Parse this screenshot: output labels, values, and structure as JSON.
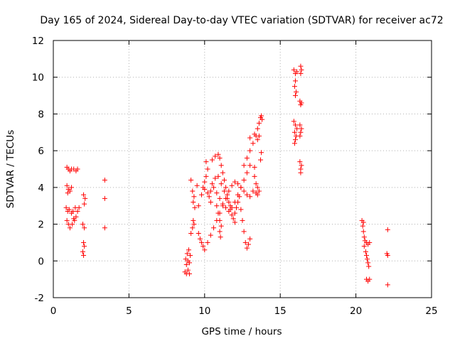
{
  "chart_data": {
    "type": "scatter",
    "title": "Day 165 of 2024, Sidereal Day-to-day VTEC variation (SDTVAR) for receiver ac72",
    "xlabel": "GPS time / hours",
    "ylabel": "SDTVAR / TECUs",
    "xlim": [
      0,
      25
    ],
    "ylim": [
      -2,
      12
    ],
    "xticks": [
      "0",
      "5",
      "10",
      "15",
      "20",
      "25"
    ],
    "yticks": [
      "-2",
      "0",
      "2",
      "4",
      "6",
      "8",
      "10",
      "12"
    ],
    "grid": true,
    "marker": "+",
    "color": "#ff0000",
    "series": [
      {
        "name": "SDTVAR",
        "points": [
          [
            0.9,
            5.1
          ],
          [
            1.0,
            5.0
          ],
          [
            1.1,
            4.9
          ],
          [
            1.2,
            5.0
          ],
          [
            1.35,
            5.0
          ],
          [
            1.5,
            4.9
          ],
          [
            1.6,
            5.0
          ],
          [
            0.9,
            4.1
          ],
          [
            1.0,
            3.9
          ],
          [
            1.1,
            3.8
          ],
          [
            1.2,
            4.0
          ],
          [
            0.95,
            3.7
          ],
          [
            0.85,
            2.9
          ],
          [
            0.95,
            2.7
          ],
          [
            1.05,
            2.8
          ],
          [
            1.2,
            2.6
          ],
          [
            1.3,
            2.7
          ],
          [
            1.45,
            2.9
          ],
          [
            1.6,
            2.7
          ],
          [
            1.7,
            2.9
          ],
          [
            0.9,
            2.2
          ],
          [
            1.0,
            2.0
          ],
          [
            1.1,
            1.8
          ],
          [
            1.25,
            2.0
          ],
          [
            1.4,
            2.2
          ],
          [
            1.5,
            2.4
          ],
          [
            1.35,
            2.3
          ],
          [
            2.0,
            3.6
          ],
          [
            2.1,
            3.4
          ],
          [
            2.05,
            3.1
          ],
          [
            1.95,
            2.0
          ],
          [
            2.05,
            1.8
          ],
          [
            2.0,
            1.0
          ],
          [
            2.05,
            0.8
          ],
          [
            1.95,
            0.5
          ],
          [
            2.0,
            0.3
          ],
          [
            3.4,
            4.4
          ],
          [
            3.4,
            3.4
          ],
          [
            3.4,
            1.8
          ],
          [
            8.7,
            -0.6
          ],
          [
            8.8,
            -0.7
          ],
          [
            8.9,
            -0.5
          ],
          [
            9.0,
            -0.7
          ],
          [
            8.75,
            0.1
          ],
          [
            8.85,
            0.4
          ],
          [
            8.95,
            0.6
          ],
          [
            9.05,
            0.3
          ],
          [
            8.8,
            -0.2
          ],
          [
            8.9,
            0.0
          ],
          [
            9.0,
            -0.1
          ],
          [
            9.1,
            1.5
          ],
          [
            9.2,
            1.8
          ],
          [
            9.3,
            2.0
          ],
          [
            9.25,
            2.2
          ],
          [
            9.2,
            3.8
          ],
          [
            9.3,
            3.5
          ],
          [
            9.25,
            3.2
          ],
          [
            9.35,
            2.9
          ],
          [
            9.1,
            4.4
          ],
          [
            9.5,
            4.1
          ],
          [
            9.6,
            3.0
          ],
          [
            9.8,
            3.6
          ],
          [
            9.9,
            4.0
          ],
          [
            10.0,
            4.3
          ],
          [
            10.1,
            4.6
          ],
          [
            10.2,
            5.0
          ],
          [
            10.1,
            5.4
          ],
          [
            10.3,
            3.5
          ],
          [
            10.4,
            3.2
          ],
          [
            10.5,
            5.5
          ],
          [
            10.7,
            5.7
          ],
          [
            10.9,
            5.8
          ],
          [
            11.0,
            5.6
          ],
          [
            11.1,
            5.2
          ],
          [
            11.2,
            4.8
          ],
          [
            11.3,
            4.4
          ],
          [
            11.4,
            4.0
          ],
          [
            11.5,
            3.6
          ],
          [
            11.6,
            3.2
          ],
          [
            11.7,
            2.8
          ],
          [
            11.8,
            2.5
          ],
          [
            11.9,
            2.3
          ],
          [
            12.0,
            2.1
          ],
          [
            9.6,
            1.5
          ],
          [
            9.7,
            1.2
          ],
          [
            9.8,
            1.0
          ],
          [
            9.9,
            0.8
          ],
          [
            10.0,
            0.6
          ],
          [
            10.2,
            1.0
          ],
          [
            10.4,
            1.4
          ],
          [
            10.6,
            1.8
          ],
          [
            10.8,
            2.2
          ],
          [
            11.0,
            2.6
          ],
          [
            11.2,
            3.0
          ],
          [
            11.4,
            3.4
          ],
          [
            11.6,
            3.8
          ],
          [
            11.8,
            4.1
          ],
          [
            12.0,
            4.3
          ],
          [
            12.2,
            4.2
          ],
          [
            12.4,
            4.0
          ],
          [
            12.6,
            3.8
          ],
          [
            12.8,
            3.6
          ],
          [
            13.0,
            3.5
          ],
          [
            13.2,
            3.8
          ],
          [
            13.4,
            3.7
          ],
          [
            13.5,
            3.6
          ],
          [
            10.0,
            3.9
          ],
          [
            10.2,
            3.7
          ],
          [
            10.4,
            3.8
          ],
          [
            10.6,
            4.0
          ],
          [
            10.8,
            3.7
          ],
          [
            11.0,
            3.4
          ],
          [
            11.2,
            3.1
          ],
          [
            11.4,
            2.9
          ],
          [
            11.6,
            2.7
          ],
          [
            11.8,
            2.9
          ],
          [
            12.0,
            3.2
          ],
          [
            12.2,
            3.6
          ],
          [
            12.4,
            4.0
          ],
          [
            12.6,
            4.4
          ],
          [
            12.8,
            4.8
          ],
          [
            13.0,
            5.2
          ],
          [
            10.5,
            4.2
          ],
          [
            10.7,
            4.5
          ],
          [
            10.9,
            4.6
          ],
          [
            11.1,
            4.2
          ],
          [
            11.3,
            3.8
          ],
          [
            11.5,
            3.4
          ],
          [
            11.7,
            3.0
          ],
          [
            10.8,
            3.0
          ],
          [
            10.9,
            2.6
          ],
          [
            11.0,
            2.2
          ],
          [
            11.1,
            1.9
          ],
          [
            11.0,
            1.6
          ],
          [
            11.05,
            1.3
          ],
          [
            12.0,
            2.6
          ],
          [
            12.1,
            2.9
          ],
          [
            12.2,
            3.2
          ],
          [
            12.3,
            3.5
          ],
          [
            12.4,
            2.8
          ],
          [
            12.5,
            2.2
          ],
          [
            12.6,
            1.6
          ],
          [
            12.7,
            1.0
          ],
          [
            12.8,
            0.7
          ],
          [
            12.9,
            0.9
          ],
          [
            13.0,
            1.2
          ],
          [
            12.6,
            5.2
          ],
          [
            12.8,
            5.6
          ],
          [
            13.0,
            6.0
          ],
          [
            13.2,
            6.4
          ],
          [
            13.4,
            6.8
          ],
          [
            13.5,
            7.2
          ],
          [
            13.6,
            7.5
          ],
          [
            13.7,
            7.8
          ],
          [
            13.75,
            7.9
          ],
          [
            13.8,
            7.7
          ],
          [
            13.0,
            6.7
          ],
          [
            13.3,
            6.9
          ],
          [
            13.5,
            6.6
          ],
          [
            13.6,
            6.8
          ],
          [
            13.3,
            4.6
          ],
          [
            13.4,
            4.2
          ],
          [
            13.5,
            4.0
          ],
          [
            13.6,
            3.8
          ],
          [
            13.7,
            5.5
          ],
          [
            13.75,
            5.9
          ],
          [
            13.3,
            5.1
          ],
          [
            15.9,
            10.4
          ],
          [
            16.0,
            10.2
          ],
          [
            16.1,
            10.3
          ],
          [
            16.0,
            9.8
          ],
          [
            15.95,
            9.5
          ],
          [
            16.05,
            9.2
          ],
          [
            16.0,
            9.0
          ],
          [
            16.35,
            10.6
          ],
          [
            16.4,
            10.4
          ],
          [
            16.35,
            10.2
          ],
          [
            16.3,
            8.7
          ],
          [
            16.4,
            8.6
          ],
          [
            16.35,
            8.5
          ],
          [
            15.9,
            7.6
          ],
          [
            16.0,
            7.4
          ],
          [
            16.1,
            7.2
          ],
          [
            15.95,
            7.0
          ],
          [
            16.05,
            6.8
          ],
          [
            16.0,
            6.6
          ],
          [
            15.95,
            6.4
          ],
          [
            16.3,
            7.4
          ],
          [
            16.4,
            7.2
          ],
          [
            16.35,
            7.0
          ],
          [
            16.3,
            6.8
          ],
          [
            16.3,
            5.4
          ],
          [
            16.4,
            5.2
          ],
          [
            16.35,
            5.0
          ],
          [
            16.35,
            4.8
          ],
          [
            20.4,
            2.2
          ],
          [
            20.5,
            2.1
          ],
          [
            20.45,
            1.9
          ],
          [
            20.5,
            1.6
          ],
          [
            20.55,
            1.3
          ],
          [
            20.6,
            1.1
          ],
          [
            20.7,
            1.0
          ],
          [
            20.8,
            0.9
          ],
          [
            20.9,
            1.0
          ],
          [
            20.55,
            0.8
          ],
          [
            20.65,
            0.5
          ],
          [
            20.7,
            0.3
          ],
          [
            20.75,
            0.1
          ],
          [
            20.8,
            -0.1
          ],
          [
            20.85,
            -0.3
          ],
          [
            20.7,
            -1.0
          ],
          [
            20.8,
            -1.1
          ],
          [
            20.9,
            -1.0
          ],
          [
            22.1,
            1.7
          ],
          [
            22.05,
            0.4
          ],
          [
            22.1,
            0.3
          ],
          [
            22.1,
            -1.3
          ]
        ]
      }
    ]
  }
}
